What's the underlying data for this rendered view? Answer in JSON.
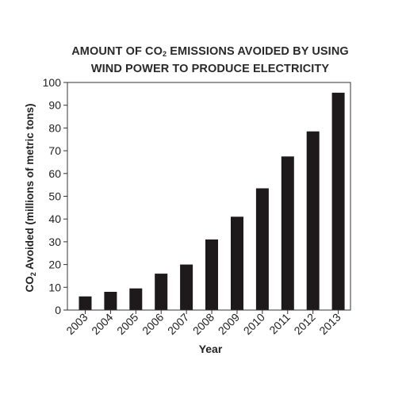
{
  "chart_data": {
    "type": "bar",
    "title_line1_pre": "AMOUNT OF CO",
    "title_line1_sub": "2",
    "title_line1_post": " EMISSIONS AVOIDED BY USING",
    "title_line2": "WIND POWER TO PRODUCE ELECTRICITY",
    "xlabel": "Year",
    "ylabel_pre": "CO",
    "ylabel_sub": "2",
    "ylabel_post": " Avoided (millions of metric tons)",
    "ylim": [
      0,
      100
    ],
    "yticks": [
      0,
      10,
      20,
      30,
      40,
      50,
      60,
      70,
      80,
      90,
      100
    ],
    "grid": false,
    "categories": [
      "2003",
      "2004",
      "2005",
      "2006",
      "2007",
      "2008",
      "2009",
      "2010",
      "2011",
      "2012",
      "2013"
    ],
    "values": [
      6,
      8,
      9.5,
      16,
      20,
      31,
      41,
      53.5,
      67.5,
      78.5,
      95.5
    ],
    "bar_color": "#1e1a1b"
  }
}
